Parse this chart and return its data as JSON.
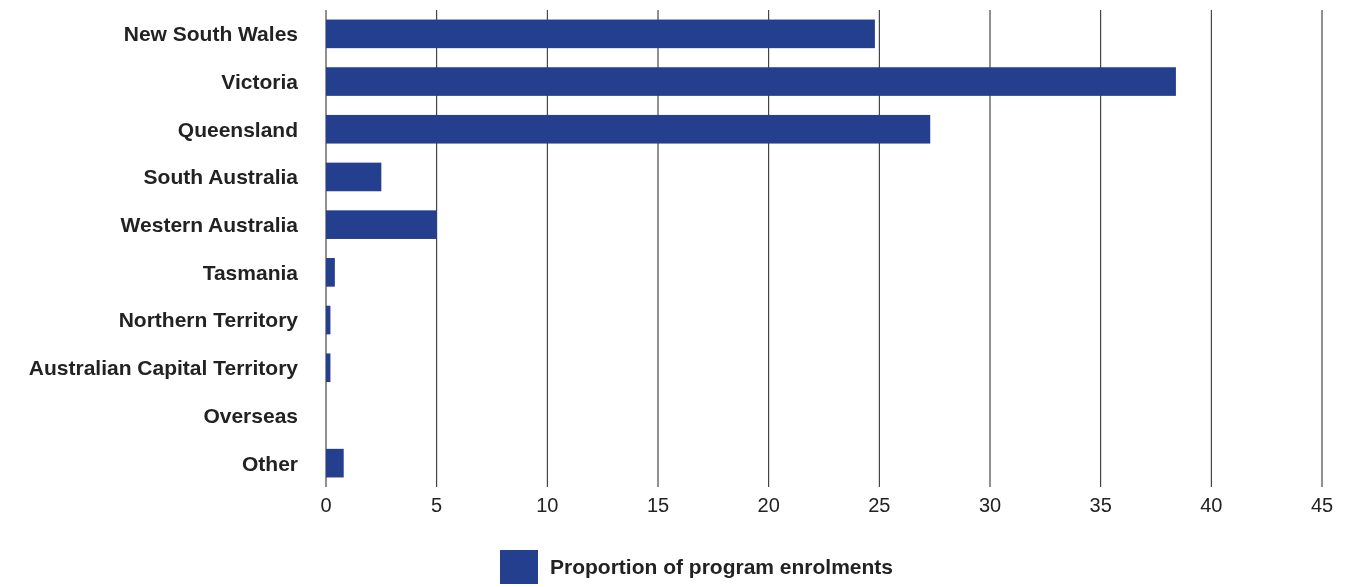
{
  "chart_data": {
    "type": "bar",
    "orientation": "horizontal",
    "categories": [
      "New South Wales",
      "Victoria",
      "Queensland",
      "South Australia",
      "Western Australia",
      "Tasmania",
      "Northern Territory",
      "Australian Capital Territory",
      "Overseas",
      "Other"
    ],
    "series": [
      {
        "name": "Proportion of program enrolments",
        "color": "#253f8f",
        "values": [
          24.8,
          38.4,
          27.3,
          2.5,
          5.0,
          0.4,
          0.2,
          0.2,
          0,
          0.8
        ]
      }
    ],
    "xlim": [
      0,
      45
    ],
    "xticks": [
      0,
      5,
      10,
      15,
      20,
      25,
      30,
      35,
      40,
      45
    ],
    "grid": "x",
    "legend": "bottom"
  }
}
